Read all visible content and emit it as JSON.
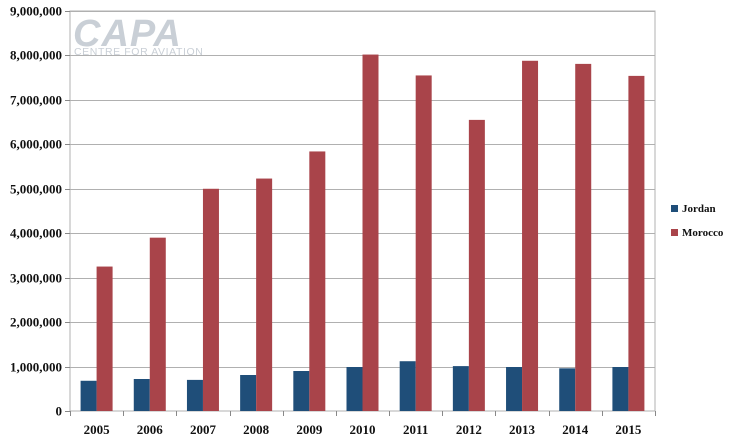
{
  "logo": {
    "main": "CAPA",
    "sub": "CENTRE FOR AVIATION"
  },
  "colors": {
    "jordan": "#1f4e79",
    "morocco": "#a9444a",
    "grid": "#b0b0b0"
  },
  "chart_data": {
    "type": "bar",
    "title": "",
    "xlabel": "",
    "ylabel": "",
    "categories": [
      "2005",
      "2006",
      "2007",
      "2008",
      "2009",
      "2010",
      "2011",
      "2012",
      "2013",
      "2014",
      "2015"
    ],
    "series": [
      {
        "name": "Jordan",
        "color": "#1f4e79",
        "values": [
          680000,
          720000,
          700000,
          810000,
          900000,
          990000,
          1120000,
          1010000,
          990000,
          960000,
          990000
        ]
      },
      {
        "name": "Morocco",
        "color": "#a9444a",
        "values": [
          3250000,
          3900000,
          5000000,
          5230000,
          5840000,
          8020000,
          7550000,
          6550000,
          7880000,
          7810000,
          7540000
        ]
      }
    ],
    "ylim": [
      0,
      9000000
    ],
    "y_ticks": [
      "0",
      "1,000,000",
      "2,000,000",
      "3,000,000",
      "4,000,000",
      "5,000,000",
      "6,000,000",
      "7,000,000",
      "8,000,000",
      "9,000,000"
    ],
    "grid": true,
    "legend_position": "right"
  }
}
